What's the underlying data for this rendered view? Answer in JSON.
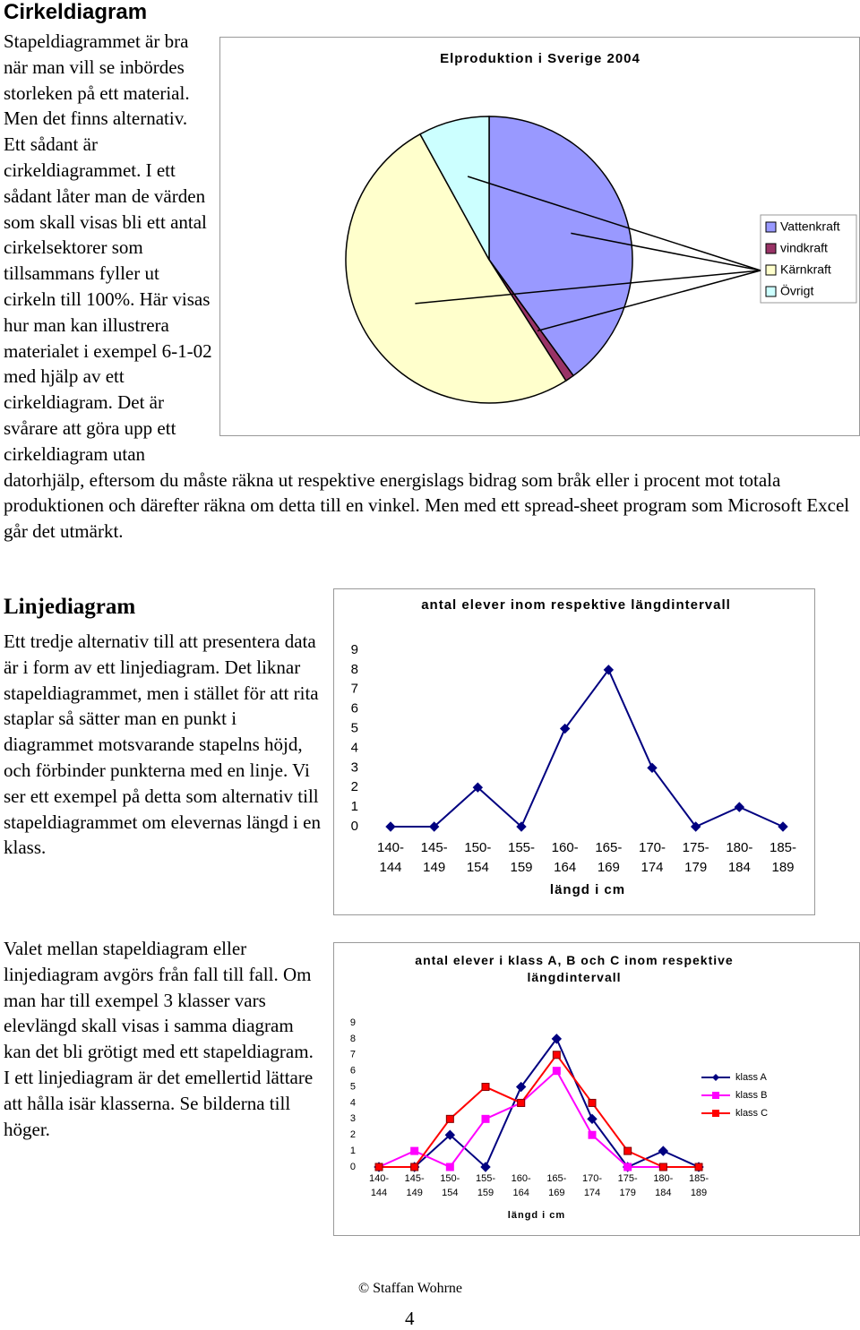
{
  "sections": [
    {
      "heading": "Cirkeldiagram",
      "text": "Stapeldiagrammet är bra när man vill se inbördes storleken på ett material. Men det finns alternativ. Ett sådant är cirkeldiagrammet. I ett sådant låter man de värden som skall visas bli ett antal cirkelsektorer som tillsammans fyller ut cirkeln till 100%. Här visas hur man kan illustrera materialet i exempel 6-1-02 med hjälp av ett cirkeldiagram. Det är svårare att göra upp ett cirkeldiagram utan datorhjälp, eftersom du måste räkna ut respektive energislags bidrag som bråk eller i procent mot totala produktionen och därefter räkna om detta till en vinkel. Men med ett spread-sheet program som Microsoft Excel går det utmärkt."
    },
    {
      "heading": "Linjediagram",
      "text": "Ett tredje alternativ till att presentera data är i form av ett linjediagram. Det liknar stapeldiagrammet, men i stället för att rita staplar så sätter man en punkt i diagrammet motsvarande stapelns höjd, och förbinder punkterna med en linje. Vi ser ett exempel på detta som alternativ till stapeldiagrammet om elevernas längd i en klass."
    },
    {
      "text": "Valet mellan stapeldiagram eller linjediagram avgörs från fall till fall. Om man har till exempel 3 klasser vars elevlängd skall visas i samma diagram kan det bli grötigt med ett stapeldiagram. I ett linjediagram är det emellertid lättare att hålla isär klasserna. Se bilderna till höger."
    }
  ],
  "chart_data": [
    {
      "type": "pie",
      "title": "Elproduktion i Sverige 2004",
      "categories": [
        "Vattenkraft",
        "vindkraft",
        "Kärnkraft",
        "Övrigt"
      ],
      "values": [
        40,
        1,
        51,
        8
      ],
      "colors": [
        "#9999ff",
        "#993366",
        "#ffffcc",
        "#ccffff"
      ],
      "legend": "right"
    },
    {
      "type": "line",
      "title": "antal elever inom respektive längdintervall",
      "categories": [
        "140-144",
        "145-149",
        "150-154",
        "155-159",
        "160-164",
        "165-169",
        "170-174",
        "175-179",
        "180-184",
        "185-189"
      ],
      "series": [
        {
          "color": "#000080",
          "marker": "diamond",
          "values": [
            0,
            0,
            2,
            0,
            5,
            8,
            3,
            0,
            1,
            0
          ]
        }
      ],
      "xlabel": "längd i cm",
      "ylim": [
        0,
        9
      ],
      "yticks": [
        0,
        1,
        2,
        3,
        4,
        5,
        6,
        7,
        8,
        9
      ],
      "grid": false
    },
    {
      "type": "line",
      "title": "antal elever i klass A, B och C inom respektive längdintervall",
      "categories": [
        "140-144",
        "145-149",
        "150-154",
        "155-159",
        "160-164",
        "165-169",
        "170-174",
        "175-179",
        "180-184",
        "185-189"
      ],
      "series": [
        {
          "name": "klass A",
          "color": "#000080",
          "marker": "diamond",
          "values": [
            0,
            0,
            2,
            0,
            5,
            8,
            3,
            0,
            1,
            0
          ]
        },
        {
          "name": "klass B",
          "color": "#ff00ff",
          "marker": "square",
          "values": [
            0,
            1,
            0,
            3,
            4,
            6,
            2,
            0,
            0,
            0
          ]
        },
        {
          "name": "klass C",
          "color": "#ff0000",
          "marker": "square",
          "values": [
            0,
            0,
            3,
            5,
            4,
            7,
            4,
            1,
            0,
            0
          ]
        }
      ],
      "xlabel": "längd i cm",
      "ylim": [
        0,
        9
      ],
      "yticks": [
        0,
        1,
        2,
        3,
        4,
        5,
        6,
        7,
        8,
        9
      ],
      "grid": false,
      "legend": "right"
    }
  ],
  "footer": {
    "copyright": "© Staffan Wohrne",
    "page": "4"
  }
}
